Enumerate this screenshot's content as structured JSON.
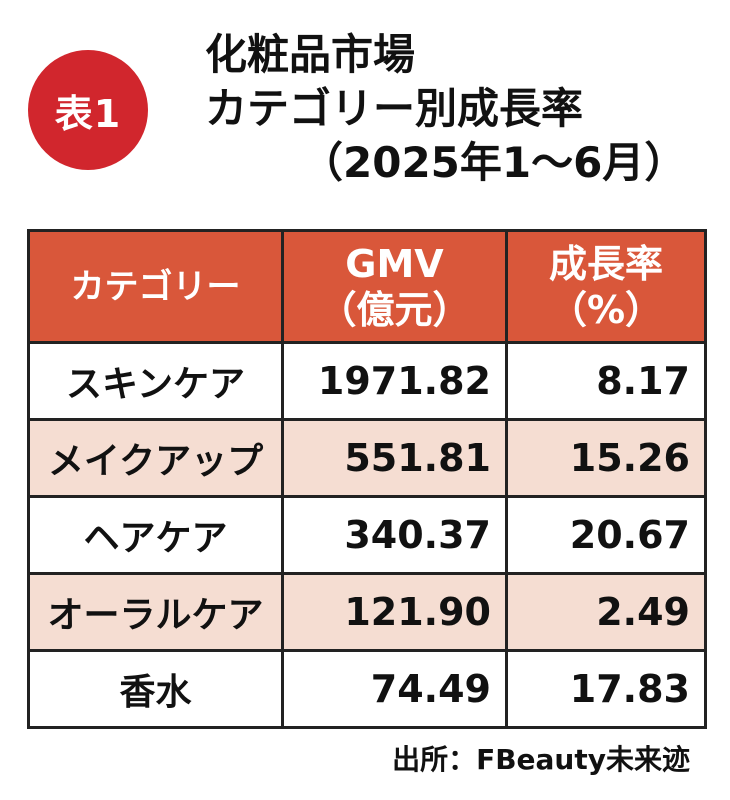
{
  "badge": "表1",
  "title": {
    "line1": "化粧品市場",
    "line2": "カテゴリー別成長率",
    "line3": "（2025年1〜6月）"
  },
  "table": {
    "headers": {
      "category": "カテゴリー",
      "gmv": "GMV",
      "gmv_unit": "（億元）",
      "growth": "成長率",
      "growth_unit": "（%）"
    },
    "rows": [
      {
        "category": "スキンケア",
        "gmv": "1971.82",
        "growth": "8.17"
      },
      {
        "category": "メイクアップ",
        "gmv": "551.81",
        "growth": "15.26"
      },
      {
        "category": "ヘアケア",
        "gmv": "340.37",
        "growth": "20.67"
      },
      {
        "category": "オーラルケア",
        "gmv": "121.90",
        "growth": "2.49"
      },
      {
        "category": "香水",
        "gmv": "74.49",
        "growth": "17.83"
      }
    ]
  },
  "source": "出所：FBeauty未来迹",
  "colors": {
    "badge": "#d1262d",
    "header": "#d9573a",
    "shaded_row": "#f5ddd2"
  }
}
